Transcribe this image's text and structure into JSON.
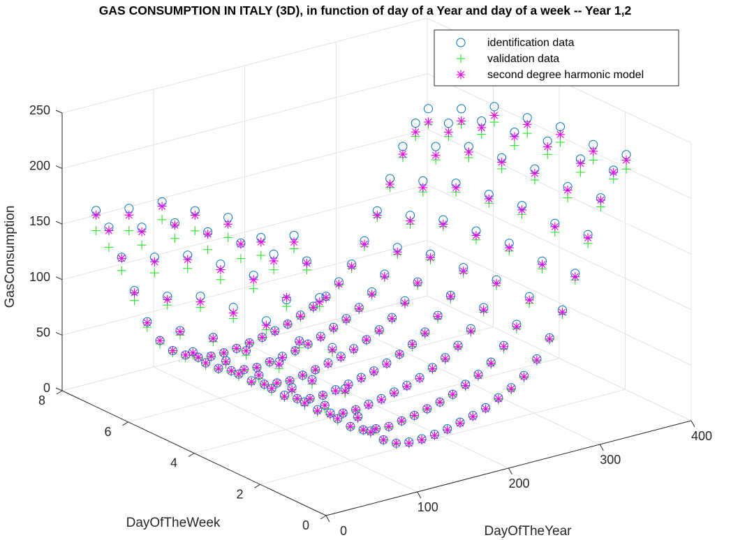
{
  "chart_data": {
    "type": "scatter",
    "title": "GAS CONSUMPTION IN ITALY (3D), in function of day of a Year and day of a week -- Year 1,2",
    "xlabel": "DayOfTheYear",
    "ylabel": "DayOfTheWeek",
    "zlabel": "GasConsumption",
    "xlim": [
      0,
      400
    ],
    "ylim": [
      0,
      8
    ],
    "zlim": [
      0,
      250
    ],
    "x_ticks": [
      "0",
      "100",
      "200",
      "300",
      "400"
    ],
    "y_ticks": [
      "0",
      "2",
      "4",
      "6",
      "8"
    ],
    "z_ticks": [
      "0",
      "50",
      "100",
      "150",
      "200",
      "250"
    ],
    "grid": true,
    "legend_position": "top-right",
    "days_of_week": [
      1,
      2,
      3,
      4,
      5,
      6,
      7
    ],
    "day_of_year_values": [
      1,
      15,
      29,
      43,
      57,
      71,
      85,
      99,
      113,
      127,
      141,
      155,
      169,
      183,
      197,
      211,
      225,
      239,
      253,
      267,
      281,
      295,
      309,
      323,
      337,
      351,
      365
    ],
    "series": [
      {
        "name": "identification data",
        "marker": "circle",
        "color": "#0072BD",
        "points_by_weekday": [
          [
            238,
            212,
            176,
            128,
            88,
            60,
            44,
            33,
            27,
            25,
            25,
            26,
            28,
            31,
            34,
            38,
            44,
            50,
            58,
            70,
            86,
            108,
            138,
            170,
            200,
            222,
            233
          ],
          [
            222,
            204,
            160,
            120,
            82,
            56,
            41,
            31,
            25,
            23,
            22,
            24,
            26,
            29,
            32,
            36,
            42,
            48,
            56,
            68,
            84,
            106,
            135,
            166,
            196,
            218,
            228
          ],
          [
            226,
            200,
            168,
            124,
            84,
            58,
            42,
            32,
            26,
            23,
            23,
            25,
            27,
            30,
            33,
            37,
            43,
            49,
            57,
            69,
            85,
            107,
            137,
            168,
            198,
            220,
            230
          ],
          [
            218,
            196,
            164,
            122,
            80,
            55,
            40,
            31,
            25,
            22,
            22,
            24,
            26,
            29,
            32,
            36,
            41,
            47,
            55,
            67,
            82,
            104,
            134,
            164,
            194,
            214,
            224
          ],
          [
            212,
            190,
            158,
            118,
            78,
            54,
            39,
            30,
            24,
            22,
            21,
            23,
            25,
            28,
            31,
            35,
            40,
            46,
            54,
            66,
            80,
            102,
            130,
            160,
            190,
            210,
            220
          ],
          [
            192,
            172,
            142,
            104,
            70,
            48,
            35,
            27,
            22,
            20,
            19,
            21,
            23,
            25,
            28,
            32,
            37,
            42,
            49,
            60,
            73,
            94,
            120,
            148,
            176,
            194,
            204
          ],
          [
            176,
            158,
            128,
            95,
            64,
            44,
            32,
            25,
            20,
            18,
            18,
            19,
            21,
            23,
            26,
            29,
            34,
            39,
            45,
            55,
            68,
            86,
            110,
            136,
            162,
            180,
            190
          ]
        ]
      },
      {
        "name": "validation data",
        "marker": "plus",
        "color": "#2BE02B",
        "points_by_weekday": [
          [
            226,
            204,
            168,
            124,
            84,
            58,
            42,
            32,
            26,
            24,
            24,
            25,
            27,
            30,
            33,
            37,
            42,
            48,
            56,
            68,
            84,
            104,
            132,
            162,
            192,
            214,
            220
          ],
          [
            206,
            190,
            154,
            114,
            78,
            53,
            39,
            30,
            24,
            22,
            21,
            23,
            25,
            28,
            31,
            35,
            40,
            46,
            54,
            65,
            80,
            100,
            128,
            158,
            186,
            206,
            214
          ],
          [
            208,
            186,
            156,
            116,
            78,
            54,
            39,
            30,
            24,
            22,
            22,
            24,
            26,
            29,
            32,
            36,
            41,
            47,
            55,
            66,
            81,
            102,
            130,
            160,
            188,
            208,
            216
          ],
          [
            200,
            180,
            150,
            112,
            76,
            52,
            38,
            29,
            24,
            21,
            21,
            23,
            25,
            28,
            31,
            35,
            40,
            45,
            53,
            64,
            79,
            99,
            126,
            156,
            184,
            202,
            210
          ],
          [
            196,
            176,
            146,
            108,
            74,
            51,
            37,
            28,
            23,
            21,
            20,
            22,
            24,
            27,
            30,
            34,
            39,
            44,
            52,
            63,
            77,
            97,
            124,
            152,
            180,
            198,
            206
          ],
          [
            172,
            156,
            128,
            96,
            66,
            45,
            33,
            26,
            21,
            19,
            18,
            20,
            22,
            24,
            27,
            31,
            35,
            40,
            47,
            57,
            70,
            88,
            112,
            138,
            164,
            182,
            190
          ],
          [
            158,
            140,
            116,
            86,
            59,
            41,
            30,
            23,
            19,
            17,
            17,
            18,
            20,
            22,
            25,
            28,
            32,
            37,
            43,
            52,
            64,
            81,
            104,
            128,
            152,
            168,
            176
          ]
        ]
      },
      {
        "name": "second degree harmonic model",
        "marker": "asterisk",
        "color": "#E600E6",
        "points_by_weekday": [
          [
            232,
            210,
            172,
            126,
            86,
            59,
            43,
            33,
            27,
            24,
            24,
            25,
            27,
            30,
            33,
            37,
            43,
            49,
            57,
            69,
            85,
            106,
            135,
            167,
            198,
            220,
            228
          ],
          [
            218,
            198,
            162,
            119,
            81,
            56,
            41,
            31,
            25,
            23,
            22,
            24,
            26,
            29,
            32,
            36,
            41,
            47,
            55,
            67,
            82,
            103,
            132,
            163,
            193,
            214,
            222
          ],
          [
            220,
            199,
            164,
            120,
            82,
            56,
            41,
            31,
            25,
            23,
            23,
            24,
            26,
            29,
            32,
            36,
            42,
            48,
            56,
            67,
            83,
            104,
            133,
            164,
            194,
            215,
            223
          ],
          [
            214,
            194,
            159,
            117,
            80,
            55,
            40,
            30,
            25,
            22,
            22,
            23,
            25,
            28,
            31,
            35,
            41,
            47,
            54,
            66,
            81,
            101,
            130,
            160,
            190,
            210,
            218
          ],
          [
            208,
            188,
            154,
            113,
            77,
            53,
            39,
            29,
            24,
            22,
            21,
            23,
            25,
            27,
            30,
            34,
            40,
            45,
            53,
            64,
            79,
            99,
            126,
            156,
            185,
            204,
            212
          ],
          [
            186,
            168,
            138,
            101,
            69,
            47,
            35,
            27,
            22,
            20,
            19,
            21,
            22,
            25,
            28,
            31,
            36,
            41,
            48,
            58,
            71,
            90,
            115,
            142,
            168,
            186,
            193
          ],
          [
            172,
            155,
            127,
            93,
            63,
            44,
            32,
            25,
            20,
            18,
            18,
            19,
            21,
            23,
            25,
            29,
            33,
            38,
            44,
            53,
            66,
            83,
            106,
            131,
            155,
            172,
            178
          ]
        ]
      }
    ]
  }
}
